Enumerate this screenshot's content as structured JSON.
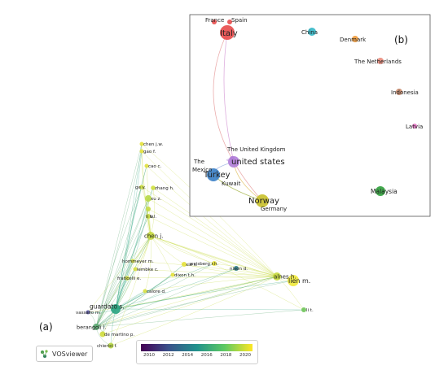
{
  "panel_labels": {
    "a": "(a)",
    "b": "(b)"
  },
  "software": {
    "name": "VOSviewer",
    "icon": "vosviewer-logo-icon"
  },
  "colorbar": {
    "ticks": [
      "2010",
      "2012",
      "2014",
      "2016",
      "2018",
      "2020"
    ],
    "colors": [
      "#440154",
      "#3b528b",
      "#21918c",
      "#5ec962",
      "#fde725"
    ]
  },
  "author_nodes": [
    {
      "label": "chen j.w.",
      "color": "#e6e23a"
    },
    {
      "label": "gao f.",
      "color": "#e6e23a"
    },
    {
      "label": "cao c.",
      "color": "#e0e03c"
    },
    {
      "label": "ge y.",
      "color": "#cfe03f"
    },
    {
      "label": "zhang h.",
      "color": "#cfe03f"
    },
    {
      "label": "xu z.",
      "color": "#b8d845"
    },
    {
      "label": "li w.",
      "color": "#c6dc42"
    },
    {
      "label": "li l.",
      "color": "#c6dc42"
    },
    {
      "label": "chen j.",
      "color": "#c4d83e"
    },
    {
      "label": "hommeyer m.",
      "color": "#d8e040"
    },
    {
      "label": "lembke c.",
      "color": "#d8e040"
    },
    {
      "label": "xie s.",
      "color": "#e6e23a"
    },
    {
      "label": "weisberg r.h.",
      "color": "#e6e23a"
    },
    {
      "label": "fraticelli e.",
      "color": "#d0dc44"
    },
    {
      "label": "dixon t.h.",
      "color": "#e6e23a"
    },
    {
      "label": "calore d.",
      "color": "#d8e040"
    },
    {
      "label": "nixon d.",
      "color": "#2e7d8a"
    },
    {
      "label": "alnes h.",
      "color": "#c6da3c"
    },
    {
      "label": "lien m.",
      "color": "#f0e93a"
    },
    {
      "label": "li t.",
      "color": "#6fc45a"
    },
    {
      "label": "guardato s.",
      "color": "#27a37f"
    },
    {
      "label": "vassallo m.",
      "color": "#5c59a6"
    },
    {
      "label": "berangoli l.",
      "color": "#5aa770"
    },
    {
      "label": "de martino p.",
      "color": "#cfdc3c"
    },
    {
      "label": "chierici f.",
      "color": "#b8d843"
    }
  ],
  "country_nodes": [
    {
      "label": "France",
      "color": "#e84a4a"
    },
    {
      "label": "Spain",
      "color": "#e84a4a"
    },
    {
      "label": "Italy",
      "color": "#e84a4a"
    },
    {
      "label": "China",
      "color": "#34b8c8"
    },
    {
      "label": "Denmark",
      "color": "#f09a3a"
    },
    {
      "label": "The Netherlands",
      "color": "#e88a7a"
    },
    {
      "label": "Indonesia",
      "color": "#c98a6a"
    },
    {
      "label": "Latvia",
      "color": "#e070c0"
    },
    {
      "label": "The United Kingdom",
      "color": "#b07cd8"
    },
    {
      "label": "The",
      "color": "#333333"
    },
    {
      "label": "united states",
      "color": "#b07cd8"
    },
    {
      "label": "Mexico",
      "color": "#3a7fc6"
    },
    {
      "label": "Turkey",
      "color": "#3a7fc6"
    },
    {
      "label": "Kuwait",
      "color": "#3a7fc6"
    },
    {
      "label": "Norway",
      "color": "#c8c02a"
    },
    {
      "label": "Germany",
      "color": "#c8c02a"
    },
    {
      "label": "Malaysia",
      "color": "#2e9e3a"
    }
  ]
}
